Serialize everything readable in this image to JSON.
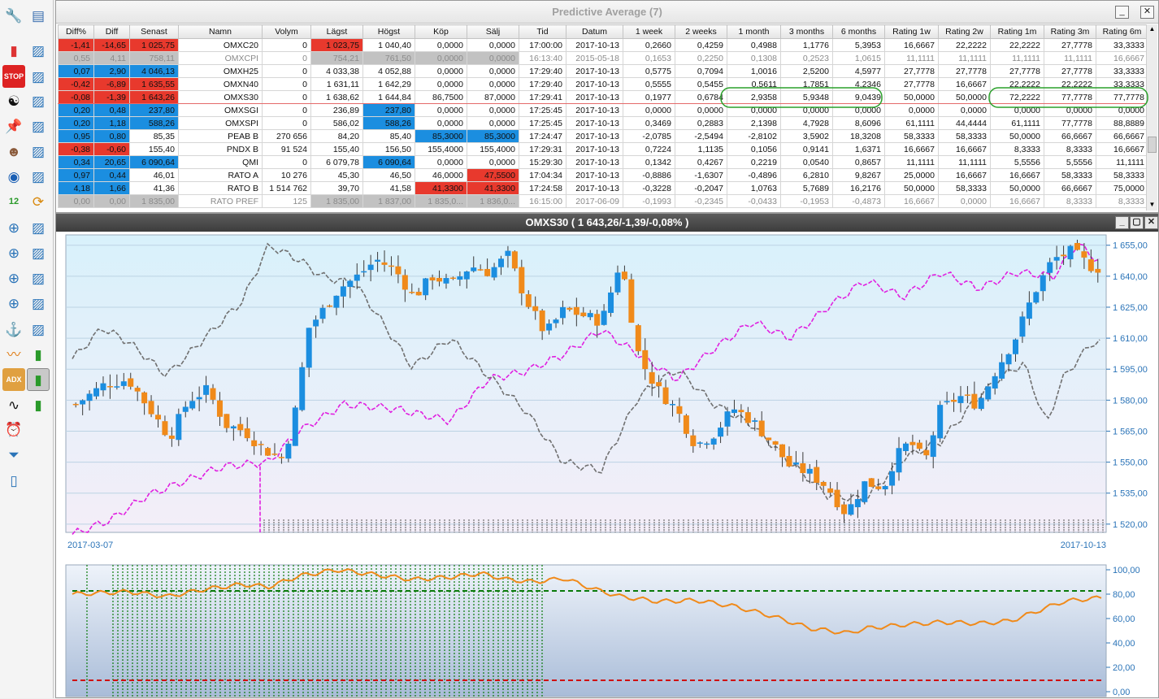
{
  "window_title": "Predictive Average (7)",
  "columns": [
    "Diff%",
    "Diff",
    "Senast",
    "Namn",
    "Volym",
    "Lägst",
    "Högst",
    "Köp",
    "Sälj",
    "Tid",
    "Datum",
    "1 week",
    "2 weeks",
    "1 month",
    "3 months",
    "6 months",
    "Rating 1w",
    "Rating 2w",
    "Rating 1m",
    "Rating 3m",
    "Rating 6m"
  ],
  "rows": [
    [
      "-1,41",
      "-14,65",
      "1 025,75",
      "OMXC20",
      "0",
      "1 023,75",
      "1 040,40",
      "0,0000",
      "0,0000",
      "17:00:00",
      "2017-10-13",
      "0,2660",
      "0,4259",
      "0,4988",
      "1,1776",
      "5,3953",
      "16,6667",
      "22,2222",
      "22,2222",
      "27,7778",
      "33,3333"
    ],
    [
      "0,55",
      "4,11",
      "758,11",
      "OMXCPI",
      "0",
      "754,21",
      "761,50",
      "0,0000",
      "0,0000",
      "16:13:40",
      "2015-05-18",
      "0,1653",
      "0,2250",
      "0,1308",
      "0,2523",
      "1,0615",
      "11,1111",
      "11,1111",
      "11,1111",
      "11,1111",
      "16,6667"
    ],
    [
      "0,07",
      "2,90",
      "4 046,13",
      "OMXH25",
      "0",
      "4 033,38",
      "4 052,88",
      "0,0000",
      "0,0000",
      "17:29:40",
      "2017-10-13",
      "0,5775",
      "0,7094",
      "1,0016",
      "2,5200",
      "4,5977",
      "27,7778",
      "27,7778",
      "27,7778",
      "27,7778",
      "33,3333"
    ],
    [
      "-0,42",
      "-6,89",
      "1 635,55",
      "OMXN40",
      "0",
      "1 631,11",
      "1 642,29",
      "0,0000",
      "0,0000",
      "17:29:40",
      "2017-10-13",
      "0,5555",
      "0,5455",
      "0,5611",
      "1,7851",
      "4,2346",
      "27,7778",
      "16,6667",
      "22,2222",
      "22,2222",
      "33,3333"
    ],
    [
      "-0,08",
      "-1,39",
      "1 643,26",
      "OMXS30",
      "0",
      "1 638,62",
      "1 644,84",
      "86,7500",
      "87,0000",
      "17:29:41",
      "2017-10-13",
      "0,1977",
      "0,6784",
      "2,9358",
      "5,9348",
      "9,0439",
      "50,0000",
      "50,0000",
      "72,2222",
      "77,7778",
      "77,7778"
    ],
    [
      "0,20",
      "0,48",
      "237,80",
      "OMXSGI",
      "0",
      "236,89",
      "237,80",
      "0,0000",
      "0,0000",
      "17:25:45",
      "2017-10-13",
      "0,0000",
      "0,0000",
      "0,0000",
      "0,0000",
      "0,0000",
      "0,0000",
      "0,0000",
      "0,0000",
      "0,0000",
      "0,0000"
    ],
    [
      "0,20",
      "1,18",
      "588,26",
      "OMXSPI",
      "0",
      "586,02",
      "588,26",
      "0,0000",
      "0,0000",
      "17:25:45",
      "2017-10-13",
      "0,3469",
      "0,2883",
      "2,1398",
      "4,7928",
      "8,6096",
      "61,1111",
      "44,4444",
      "61,1111",
      "77,7778",
      "88,8889"
    ],
    [
      "0,95",
      "0,80",
      "85,35",
      "PEAB B",
      "270 656",
      "84,20",
      "85,40",
      "85,3000",
      "85,3000",
      "17:24:47",
      "2017-10-13",
      "-2,0785",
      "-2,5494",
      "-2,8102",
      "3,5902",
      "18,3208",
      "58,3333",
      "58,3333",
      "50,0000",
      "66,6667",
      "66,6667"
    ],
    [
      "-0,38",
      "-0,60",
      "155,40",
      "PNDX B",
      "91 524",
      "155,40",
      "156,50",
      "155,4000",
      "155,4000",
      "17:29:31",
      "2017-10-13",
      "0,7224",
      "1,1135",
      "0,1056",
      "0,9141",
      "1,6371",
      "16,6667",
      "16,6667",
      "8,3333",
      "8,3333",
      "16,6667"
    ],
    [
      "0,34",
      "20,65",
      "6 090,64",
      "QMI",
      "0",
      "6 079,78",
      "6 090,64",
      "0,0000",
      "0,0000",
      "15:29:30",
      "2017-10-13",
      "0,1342",
      "0,4267",
      "0,2219",
      "0,0540",
      "0,8657",
      "11,1111",
      "11,1111",
      "5,5556",
      "5,5556",
      "11,1111"
    ],
    [
      "0,97",
      "0,44",
      "46,01",
      "RATO A",
      "10 276",
      "45,30",
      "46,50",
      "46,0000",
      "47,5500",
      "17:04:34",
      "2017-10-13",
      "-0,8886",
      "-1,6307",
      "-0,4896",
      "6,2810",
      "9,8267",
      "25,0000",
      "16,6667",
      "16,6667",
      "58,3333",
      "58,3333"
    ],
    [
      "4,18",
      "1,66",
      "41,36",
      "RATO B",
      "1 514 762",
      "39,70",
      "41,58",
      "41,3300",
      "41,3300",
      "17:24:58",
      "2017-10-13",
      "-0,3228",
      "-0,2047",
      "1,0763",
      "5,7689",
      "16,2176",
      "50,0000",
      "58,3333",
      "50,0000",
      "66,6667",
      "75,0000"
    ],
    [
      "0,00",
      "0,00",
      "1 835,00",
      "RATO PREF",
      "125",
      "1 835,00",
      "1 837,00",
      "1 835,0...",
      "1 836,0...",
      "16:15:00",
      "2017-06-09",
      "-0,1993",
      "-0,2345",
      "-0,0433",
      "-0,1953",
      "-0,4873",
      "16,6667",
      "0,0000",
      "16,6667",
      "8,3333",
      "8,3333"
    ]
  ],
  "chart": {
    "title": "OMXS30 ( 1 643,26/-1,39/-0,08% )",
    "price_axis": [
      "1 655,00",
      "1 640,00",
      "1 625,00",
      "1 610,00",
      "1 595,00",
      "1 580,00",
      "1 565,00",
      "1 550,00",
      "1 535,00",
      "1 520,00"
    ],
    "start_date": "2017-03-07",
    "end_date": "2017-10-13",
    "osc_axis": [
      "100,00",
      "80,00",
      "60,00",
      "40,00",
      "20,00",
      "0,00"
    ],
    "colors": {
      "up": "#1b8ee0",
      "down": "#f08a1a",
      "magenta": "#e020e0",
      "gray_line": "#707070",
      "osc": "#f08a1a",
      "upper_band": "#0a7a0a",
      "lower_band": "#d01010"
    }
  },
  "toolbar_icons": [
    "wrench-icon",
    "document-list-icon",
    "bar-chart-icon",
    "chart-v-icon",
    "stop-icon",
    "chart-v2-icon",
    "yin-yang-icon",
    "chart-v3-icon",
    "pin-icon",
    "chart-1-icon",
    "person-icon",
    "chart-2-icon",
    "spiral-icon",
    "chart-3-icon",
    "calendar-icon",
    "refresh-icon",
    "compass-icon",
    "chart-4-icon",
    "compass2-icon",
    "chart-5-icon",
    "compass3-icon",
    "chart-6-icon",
    "compass4-icon",
    "chart-7-icon",
    "anchor-icon",
    "chart-8-icon",
    "trend-icon",
    "bars-icon",
    "adx-icon",
    "bars-active-icon",
    "wave-icon",
    "bars2-icon",
    "alarm-icon",
    "filter-icon",
    "page-icon"
  ]
}
